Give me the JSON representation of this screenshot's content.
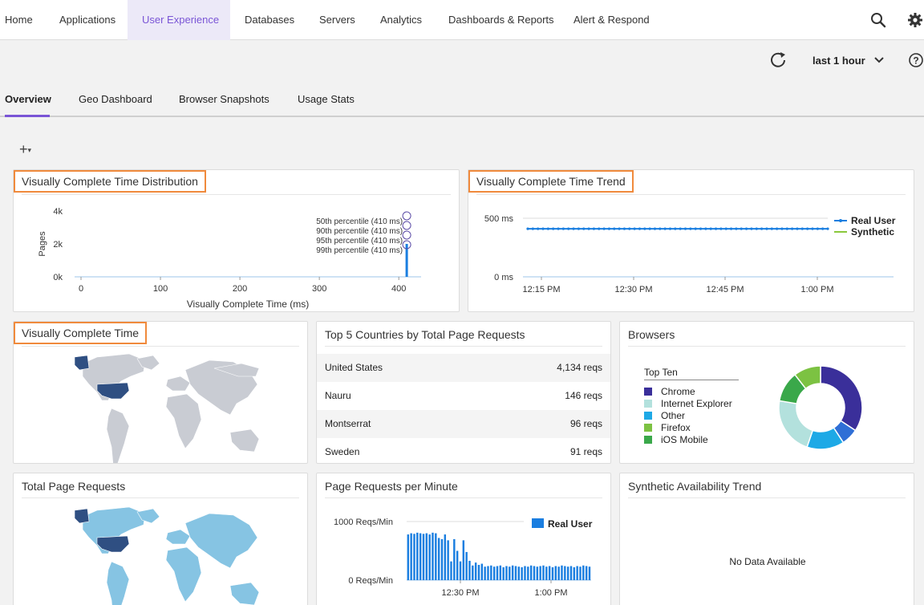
{
  "nav": {
    "items": [
      "Home",
      "Applications",
      "User Experience",
      "Databases",
      "Servers",
      "Analytics",
      "Dashboards & Reports",
      "Alert & Respond"
    ],
    "active": "User Experience"
  },
  "toolbar": {
    "time_range": "last 1 hour"
  },
  "tabs": [
    "Overview",
    "Geo Dashboard",
    "Browser Snapshots",
    "Usage Stats"
  ],
  "active_tab": "Overview",
  "add_label": "+",
  "panels": {
    "dist": {
      "title": "Visually Complete Time Distribution"
    },
    "trend": {
      "title": "Visually Complete Time Trend"
    },
    "vct": {
      "title": "Visually Complete Time"
    },
    "top5": {
      "title": "Top 5 Countries by Total Page Requests"
    },
    "browsers": {
      "title": "Browsers",
      "legend_title": "Top Ten"
    },
    "tpr": {
      "title": "Total Page Requests"
    },
    "prpm": {
      "title": "Page Requests per Minute"
    },
    "synth": {
      "title": "Synthetic Availability Trend",
      "empty": "No Data Available"
    }
  },
  "countries": [
    {
      "name": "United States",
      "reqs": "4,134 reqs"
    },
    {
      "name": "Nauru",
      "reqs": "146 reqs"
    },
    {
      "name": "Montserrat",
      "reqs": "96 reqs"
    },
    {
      "name": "Sweden",
      "reqs": "91 reqs"
    }
  ],
  "colors": {
    "accent": "#7a55d6",
    "highlight": "#f08a3c",
    "real_user": "#1a7ee0",
    "synthetic": "#8ac83c"
  },
  "chart_data": [
    {
      "type": "bar",
      "ylabel": "Pages",
      "xlabel": "Visually Complete Time (ms)",
      "x_ticks": [
        0,
        100,
        200,
        300,
        400
      ],
      "y_ticks": [
        "0k",
        "2k",
        "4k"
      ],
      "ylim": [
        0,
        4000
      ],
      "bars": [
        {
          "x": 410,
          "y": 2000
        }
      ],
      "annotations": [
        "50th percentile (410 ms)",
        "90th percentile (410 ms)",
        "95th percentile (410 ms)",
        "99th percentile (410 ms)"
      ]
    },
    {
      "type": "line",
      "x_ticks": [
        "12:15 PM",
        "12:30 PM",
        "12:45 PM",
        "1:00 PM"
      ],
      "y_ticks": [
        "0 ms",
        "500 ms"
      ],
      "ylim": [
        0,
        500
      ],
      "series": [
        {
          "name": "Real User",
          "color": "#1a7ee0",
          "constant": 410
        },
        {
          "name": "Synthetic",
          "color": "#8ac83c",
          "constant": null
        }
      ]
    },
    {
      "type": "pie",
      "labels": [
        "Chrome",
        "Internet Explorer",
        "Other",
        "Firefox",
        "iOS Mobile"
      ],
      "colors": [
        "#3a2f9a",
        "#b3e1dd",
        "#1ea9e6",
        "#7cc242",
        "#3aa84a"
      ],
      "values": [
        26,
        17,
        8,
        5,
        3
      ]
    },
    {
      "type": "bar",
      "x_ticks": [
        "12:30 PM",
        "1:00 PM"
      ],
      "y_ticks": [
        "0 Reqs/Min",
        "1000 Reqs/Min"
      ],
      "ylim": [
        0,
        1000
      ],
      "series": [
        {
          "name": "Real User",
          "color": "#1a7ee0"
        }
      ],
      "values": [
        780,
        800,
        790,
        810,
        800,
        790,
        800,
        780,
        810,
        800,
        720,
        700,
        780,
        680,
        320,
        700,
        500,
        320,
        680,
        480,
        330,
        250,
        300,
        260,
        280,
        230,
        240,
        250,
        230,
        240,
        250,
        220,
        240,
        230,
        250,
        240,
        230,
        220,
        240,
        230,
        250,
        240,
        230,
        240,
        250,
        230,
        240,
        220,
        240,
        230,
        250,
        240,
        230,
        240,
        220,
        240,
        230,
        250,
        240,
        230
      ]
    }
  ]
}
